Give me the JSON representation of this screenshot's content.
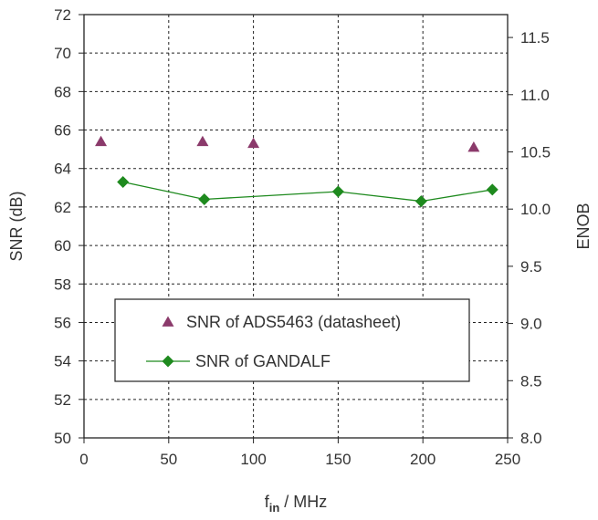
{
  "chart_data": {
    "type": "scatter",
    "title": "",
    "xlabel": {
      "main": "f",
      "subscript": "in",
      "suffix": " / MHz"
    },
    "ylabel": "SNR (dB)",
    "y2label": "ENOB",
    "xlim": [
      0,
      250
    ],
    "ylim": [
      50,
      72
    ],
    "y2lim": [
      8.0,
      11.7
    ],
    "xticks": [
      "0",
      "50",
      "100",
      "150",
      "200",
      "250"
    ],
    "yticks": [
      "50",
      "52",
      "54",
      "56",
      "58",
      "60",
      "62",
      "64",
      "66",
      "68",
      "70",
      "72"
    ],
    "y2ticks": [
      "8.0",
      "8.5",
      "9.0",
      "9.5",
      "10.0",
      "10.5",
      "11.0",
      "11.5"
    ],
    "grid": true,
    "legend_position": "center-left",
    "series": [
      {
        "name": "SNR of ADS5463 (datasheet)",
        "marker": "triangle",
        "line": false,
        "color": "#8b3a6b",
        "x": [
          10,
          70,
          100,
          230
        ],
        "y": [
          65.4,
          65.4,
          65.3,
          65.1
        ]
      },
      {
        "name": "SNR of GANDALF",
        "marker": "diamond",
        "line": true,
        "color": "#1e8a1e",
        "x": [
          23,
          71,
          150,
          199,
          241
        ],
        "y": [
          63.3,
          62.4,
          62.8,
          62.3,
          62.9
        ]
      }
    ]
  }
}
